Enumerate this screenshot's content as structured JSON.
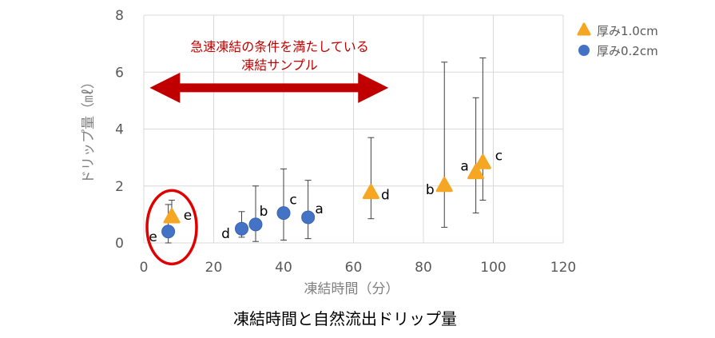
{
  "chart_data": {
    "type": "scatter",
    "title": "",
    "caption": "凍結時間と自然流出ドリップ量",
    "xlabel": "凍結時間（分）",
    "ylabel": "ドリップ量（㎖）",
    "xlim": [
      0,
      120
    ],
    "ylim": [
      0,
      8
    ],
    "xticks": [
      0,
      20,
      40,
      60,
      80,
      100,
      120
    ],
    "yticks": [
      0,
      2,
      4,
      6,
      8
    ],
    "grid": true,
    "legend_position": "top-right",
    "series": [
      {
        "name": "厚み1.0cm",
        "marker": "triangle",
        "color": "#f5a623",
        "points": [
          {
            "x": 8,
            "y": 0.9,
            "err_low": 0.9,
            "err_high": 1.5,
            "label": "e"
          },
          {
            "x": 65,
            "y": 1.75,
            "err_low": 0.85,
            "err_high": 3.7,
            "label": "d"
          },
          {
            "x": 86,
            "y": 2.0,
            "err_low": 0.55,
            "err_high": 6.35,
            "label": "b"
          },
          {
            "x": 95,
            "y": 2.45,
            "err_low": 1.05,
            "err_high": 5.1,
            "label": "a"
          },
          {
            "x": 97,
            "y": 2.8,
            "err_low": 1.5,
            "err_high": 6.5,
            "label": "c"
          }
        ]
      },
      {
        "name": "厚み0.2cm",
        "marker": "circle",
        "color": "#4472c4",
        "points": [
          {
            "x": 7,
            "y": 0.4,
            "err_low": 0.0,
            "err_high": 1.35,
            "label": "e"
          },
          {
            "x": 28,
            "y": 0.5,
            "err_low": 0.2,
            "err_high": 1.1,
            "label": "d"
          },
          {
            "x": 32,
            "y": 0.65,
            "err_low": 0.05,
            "err_high": 2.0,
            "label": "b"
          },
          {
            "x": 40,
            "y": 1.05,
            "err_low": 0.1,
            "err_high": 2.6,
            "label": "c"
          },
          {
            "x": 47,
            "y": 0.9,
            "err_low": 0.15,
            "err_high": 2.2,
            "label": "a"
          }
        ]
      }
    ],
    "annotation": {
      "line1": "急速凍結の条件を満たしている",
      "line2": "凍結サンプル",
      "arrow_from_x": 1,
      "arrow_to_x": 70,
      "arrow_y": 5.45,
      "color": "#c00000"
    },
    "highlight_circle": {
      "x": 8,
      "y": 0.55,
      "color": "#e00000"
    }
  }
}
